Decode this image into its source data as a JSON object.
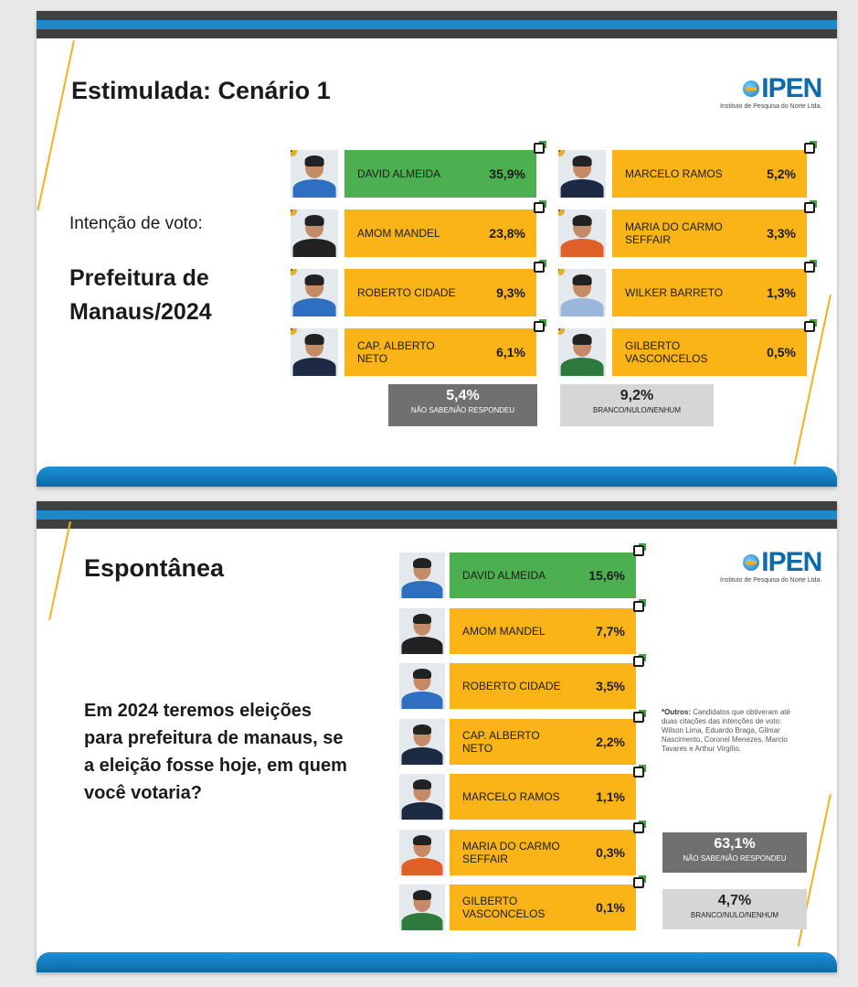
{
  "chart_data": [
    {
      "type": "bar",
      "title": "Estimulada: Cenário 1",
      "subtitle": "Intenção de voto:",
      "heading": "Prefeitura de Manaus/2024",
      "categories": [
        "DAVID ALMEIDA",
        "AMOM MANDEL",
        "ROBERTO CIDADE",
        "CAP. ALBERTO NETO",
        "MARCELO RAMOS",
        "MARIA DO CARMO SEFFAIR",
        "WILKER BARRETO",
        "GILBERTO VASCONCELOS"
      ],
      "values": [
        35.9,
        23.8,
        9.3,
        6.1,
        5.2,
        3.3,
        1.3,
        0.5
      ],
      "labels": [
        "35,9%",
        "23,8%",
        "9,3%",
        "6,1%",
        "5,2%",
        "3,3%",
        "1,3%",
        "0,5%"
      ],
      "ranks": [
        "1º",
        "2º",
        "3º",
        "4º",
        "5º",
        "6º",
        "7º",
        "8º"
      ],
      "extras": [
        {
          "label": "NÃO SABE/NÃO RESPONDEU",
          "value": 5.4,
          "text": "5,4%"
        },
        {
          "label": "BRANCO/NULO/NENHUM",
          "value": 9.2,
          "text": "9,2%"
        }
      ]
    },
    {
      "type": "bar",
      "title": "Espontânea",
      "question": "Em 2024 teremos eleições para prefeitura de manaus, se a eleição fosse hoje, em quem você votaria?",
      "categories": [
        "DAVID ALMEIDA",
        "AMOM MANDEL",
        "ROBERTO CIDADE",
        "CAP. ALBERTO NETO",
        "MARCELO RAMOS",
        "MARIA DO CARMO SEFFAIR",
        "GILBERTO VASCONCELOS"
      ],
      "values": [
        15.6,
        7.7,
        3.5,
        2.2,
        1.1,
        0.3,
        0.1
      ],
      "labels": [
        "15,6%",
        "7,7%",
        "3,5%",
        "2,2%",
        "1,1%",
        "0,3%",
        "0,1%"
      ],
      "extras": [
        {
          "label": "NÃO SABE/NÃO RESPONDEU",
          "value": 63.1,
          "text": "63,1%"
        },
        {
          "label": "BRANCO/NULO/NENHUM",
          "value": 4.7,
          "text": "4,7%"
        }
      ],
      "note_bold": "*Outros:",
      "note_text": " Candidatos que obtiveram até duas citações das intenções de voto: Wilson Lima, Eduardo Braga, Gilmar Nascimento, Coronel Menezes, Marcio Tavares e Arthur Virgílio."
    }
  ],
  "logo": {
    "text": "IPEN",
    "sub": "Instituto de Pesquisa do Norte Ltda."
  },
  "colors": {
    "leader": "#4caf50",
    "candidate": "#fbb417",
    "dk": "#707070",
    "bnn": "#d6d6d6",
    "accent": "#1e88c8"
  }
}
